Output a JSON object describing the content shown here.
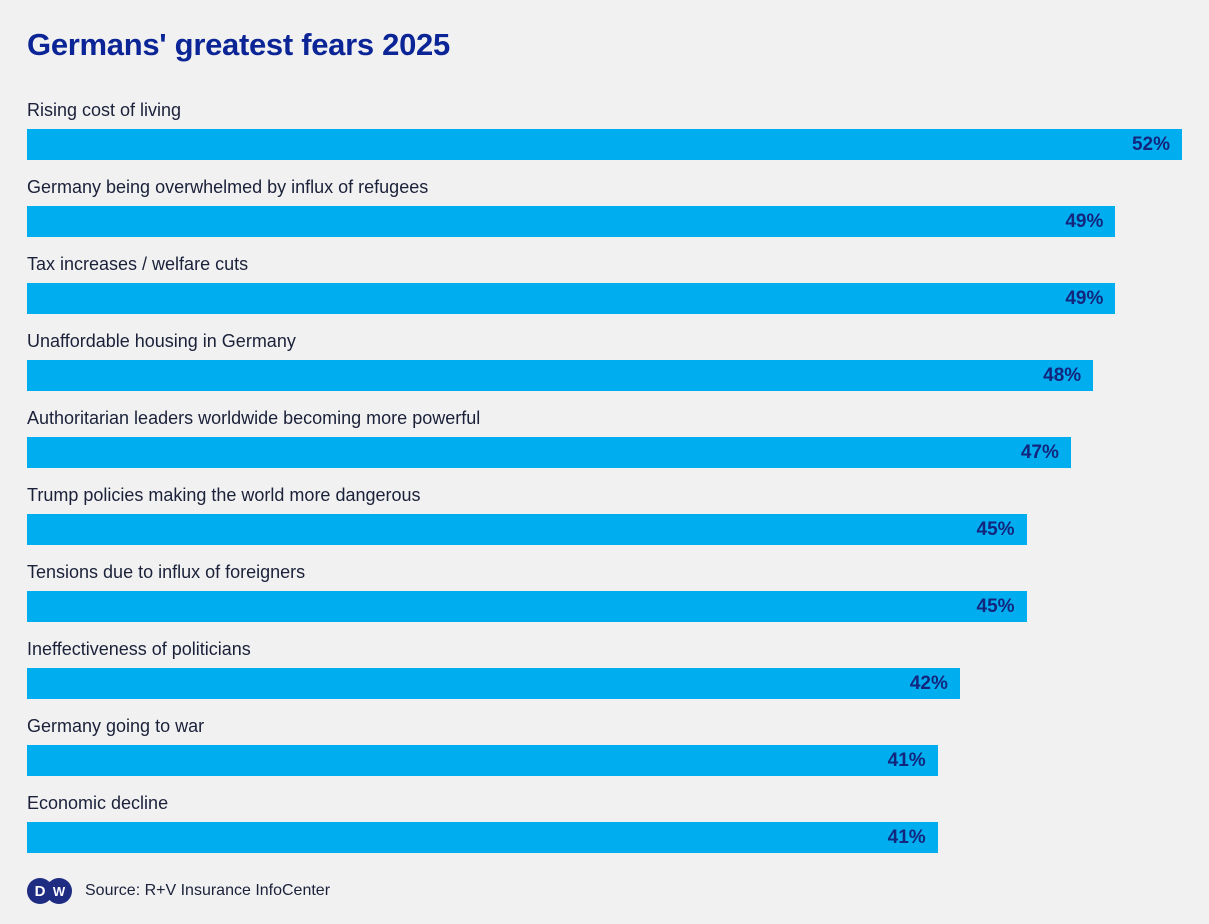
{
  "header": {
    "title": "Germans' greatest fears 2025"
  },
  "chart_data": {
    "type": "bar",
    "orientation": "horizontal",
    "title": "Germans' greatest fears 2025",
    "categories": [
      "Rising cost of living",
      "Germany being overwhelmed by influx of refugees",
      "Tax increases / welfare cuts",
      "Unaffordable housing in Germany",
      "Authoritarian leaders worldwide becoming more powerful",
      "Trump policies making the world more dangerous",
      "Tensions due to influx of foreigners",
      "Ineffectiveness of politicians",
      "Germany going to war",
      "Economic decline"
    ],
    "values": [
      52,
      49,
      49,
      48,
      47,
      45,
      45,
      42,
      41,
      41
    ],
    "value_suffix": "%",
    "xlim": [
      0,
      52
    ],
    "grid": false,
    "legend": false,
    "value_labels_inside_bars": true
  },
  "footer": {
    "logo": {
      "name": "dw-logo",
      "letter_d": "D",
      "letter_w": "W"
    },
    "source": "Source: R+V Insurance InfoCenter"
  },
  "colors": {
    "background": "#f2f1f2",
    "bar": "#00aef0",
    "title": "#0b2596",
    "category_label": "#1a2139",
    "value_label": "#13267d",
    "logo_navy": "#1e2d82"
  }
}
